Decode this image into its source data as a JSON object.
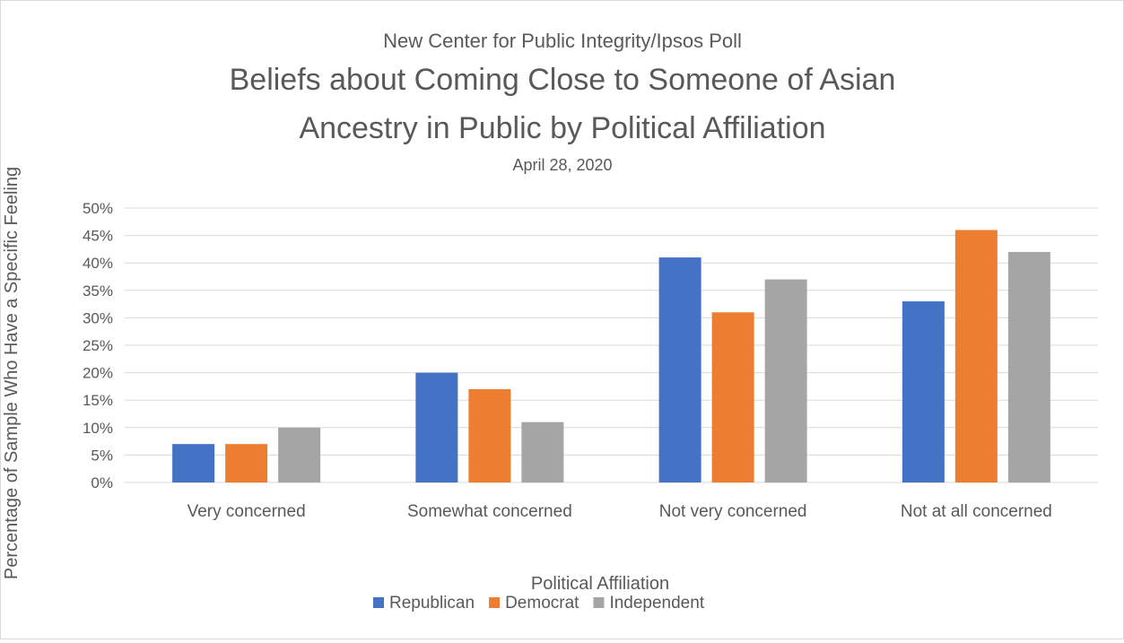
{
  "chart_data": {
    "type": "bar",
    "supertitle": "New Center for Public Integrity/Ipsos Poll",
    "title_lines": [
      "Beliefs about Coming Close to Someone of Asian",
      "Ancestry in Public by Political Affiliation"
    ],
    "subtitle": "April 28, 2020",
    "xlabel": "Political Affiliation",
    "ylabel": "Percentage of Sample Who Have a Specific Feeling",
    "ylim": [
      0,
      50
    ],
    "yticks": [
      "0%",
      "5%",
      "10%",
      "15%",
      "20%",
      "25%",
      "30%",
      "35%",
      "40%",
      "45%",
      "50%"
    ],
    "grid": true,
    "legend_position": "bottom",
    "categories": [
      "Very concerned",
      "Somewhat concerned",
      "Not very concerned",
      "Not at all concerned"
    ],
    "series": [
      {
        "name": "Republican",
        "color": "#4472c4",
        "values": [
          7,
          20,
          41,
          33
        ]
      },
      {
        "name": "Democrat",
        "color": "#ed7d31",
        "values": [
          7,
          17,
          31,
          46
        ]
      },
      {
        "name": "Independent",
        "color": "#a5a5a5",
        "values": [
          10,
          11,
          37,
          42
        ]
      }
    ]
  }
}
